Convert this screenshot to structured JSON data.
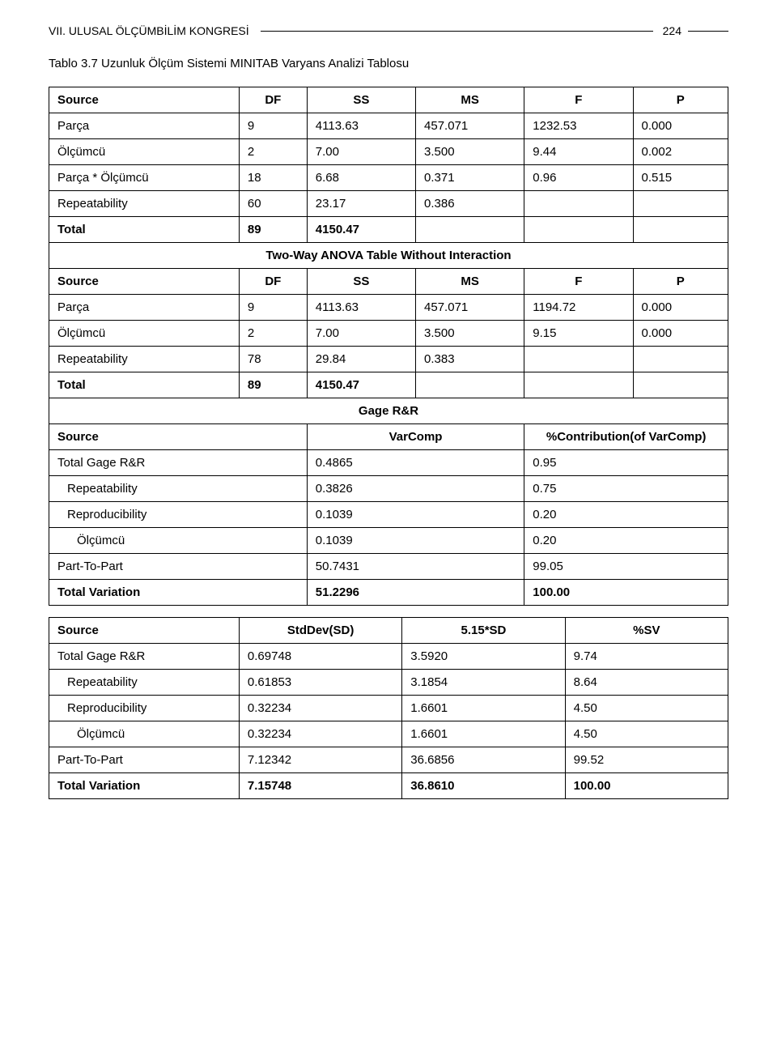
{
  "header": {
    "title": "VII. ULUSAL ÖLÇÜMBİLİM KONGRESİ",
    "pageno": "224"
  },
  "caption": "Tablo 3.7 Uzunluk Ölçüm Sistemi MINITAB Varyans Analizi Tablosu",
  "t1": {
    "h": [
      "Source",
      "DF",
      "SS",
      "MS",
      "F",
      "P"
    ],
    "rows": [
      [
        "Parça",
        "9",
        "4113.63",
        "457.071",
        "1232.53",
        "0.000"
      ],
      [
        "Ölçümcü",
        "2",
        "7.00",
        "3.500",
        "9.44",
        "0.002"
      ],
      [
        "Parça * Ölçümcü",
        "18",
        "6.68",
        "0.371",
        "0.96",
        "0.515"
      ],
      [
        "Repeatability",
        "60",
        "23.17",
        "0.386",
        "",
        ""
      ],
      [
        "Total",
        "89",
        "4150.47",
        "",
        "",
        ""
      ]
    ],
    "merge": "Two-Way ANOVA Table Without Interaction",
    "h2": [
      "Source",
      "DF",
      "SS",
      "MS",
      "F",
      "P"
    ],
    "rows2": [
      [
        "Parça",
        "9",
        "4113.63",
        "457.071",
        "1194.72",
        "0.000"
      ],
      [
        "Ölçümcü",
        "2",
        "7.00",
        "3.500",
        "9.15",
        "0.000"
      ],
      [
        "Repeatability",
        "78",
        "29.84",
        "0.383",
        "",
        ""
      ],
      [
        "Total",
        "89",
        "4150.47",
        "",
        "",
        ""
      ]
    ],
    "merge2": "Gage R&R",
    "h3": [
      "Source",
      "VarComp",
      "%Contribution(of VarComp)"
    ],
    "rows3": [
      {
        "label": "Total Gage R&R",
        "v": [
          "0.4865",
          "0.95"
        ],
        "indent": 0
      },
      {
        "label": "Repeatability",
        "v": [
          "0.3826",
          "0.75"
        ],
        "indent": 1
      },
      {
        "label": "Reproducibility",
        "v": [
          "0.1039",
          "0.20"
        ],
        "indent": 1
      },
      {
        "label": "Ölçümcü",
        "v": [
          "0.1039",
          "0.20"
        ],
        "indent": 2
      },
      {
        "label": "Part-To-Part",
        "v": [
          "50.7431",
          "99.05"
        ],
        "indent": 0
      },
      {
        "label": "Total Variation",
        "v": [
          "51.2296",
          "100.00"
        ],
        "indent": 0
      }
    ]
  },
  "t2": {
    "h": [
      "Source",
      "StdDev(SD)",
      "5.15*SD",
      "%SV"
    ],
    "rows": [
      {
        "label": "Total Gage R&R",
        "v": [
          "0.69748",
          "3.5920",
          "9.74"
        ],
        "indent": 0
      },
      {
        "label": "Repeatability",
        "v": [
          "0.61853",
          "3.1854",
          "8.64"
        ],
        "indent": 1
      },
      {
        "label": "Reproducibility",
        "v": [
          "0.32234",
          "1.6601",
          "4.50"
        ],
        "indent": 1
      },
      {
        "label": "Ölçümcü",
        "v": [
          "0.32234",
          "1.6601",
          "4.50"
        ],
        "indent": 2
      },
      {
        "label": "Part-To-Part",
        "v": [
          "7.12342",
          "36.6856",
          "99.52"
        ],
        "indent": 0
      },
      {
        "label": "Total Variation",
        "v": [
          "7.15748",
          "36.8610",
          "100.00"
        ],
        "indent": 0
      }
    ]
  }
}
